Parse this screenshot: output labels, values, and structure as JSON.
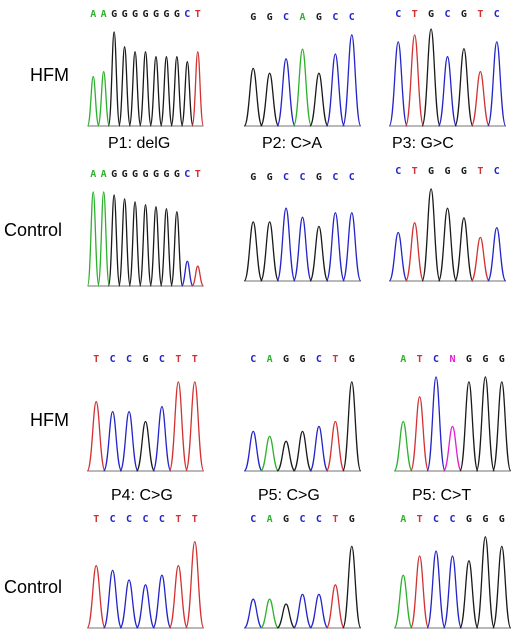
{
  "colors": {
    "A": "#2db12d",
    "C": "#2424c8",
    "G": "#1a1a1a",
    "T": "#d23232",
    "N": "#e020d0"
  },
  "row_labels": [
    "HFM",
    "Control",
    "HFM",
    "Control"
  ],
  "captions": [
    "P1: delG",
    "P2: C>A",
    "P3: G>C",
    "P4: C>G",
    "P5: C>G",
    "P5: C>T"
  ],
  "panels": [
    {
      "seq": "AAGGGGGGGCT",
      "peaks": [
        [
          0.5,
          "A"
        ],
        [
          0.55,
          "A"
        ],
        [
          0.95,
          "G"
        ],
        [
          0.8,
          "G"
        ],
        [
          0.75,
          "G"
        ],
        [
          0.75,
          "G"
        ],
        [
          0.7,
          "G"
        ],
        [
          0.7,
          "G"
        ],
        [
          0.7,
          "G"
        ],
        [
          0.65,
          "G"
        ],
        [
          0.75,
          "T"
        ]
      ]
    },
    {
      "seq": "GGCAGCC",
      "peaks": [
        [
          0.6,
          "G"
        ],
        [
          0.55,
          "G"
        ],
        [
          0.7,
          "C"
        ],
        [
          0.8,
          "A"
        ],
        [
          0.55,
          "G"
        ],
        [
          0.75,
          "C"
        ],
        [
          0.95,
          "C"
        ]
      ]
    },
    {
      "seq": "CTGCGTC",
      "peaks": [
        [
          0.85,
          "C"
        ],
        [
          0.92,
          "T"
        ],
        [
          0.98,
          "G"
        ],
        [
          0.7,
          "C"
        ],
        [
          0.78,
          "G"
        ],
        [
          0.55,
          "T"
        ],
        [
          0.85,
          "C"
        ]
      ]
    },
    {
      "seq": "AAGGGGGGGCT",
      "peaks": [
        [
          0.95,
          "A"
        ],
        [
          0.95,
          "A"
        ],
        [
          0.92,
          "G"
        ],
        [
          0.88,
          "G"
        ],
        [
          0.85,
          "G"
        ],
        [
          0.82,
          "G"
        ],
        [
          0.8,
          "G"
        ],
        [
          0.78,
          "G"
        ],
        [
          0.75,
          "G"
        ],
        [
          0.25,
          "C"
        ],
        [
          0.2,
          "T"
        ]
      ]
    },
    {
      "seq": "GGCCGCC",
      "peaks": [
        [
          0.65,
          "G"
        ],
        [
          0.65,
          "G"
        ],
        [
          0.8,
          "C"
        ],
        [
          0.7,
          "C"
        ],
        [
          0.6,
          "G"
        ],
        [
          0.75,
          "C"
        ],
        [
          0.75,
          "C"
        ]
      ]
    },
    {
      "seq": "CTGGGTC",
      "peaks": [
        [
          0.5,
          "C"
        ],
        [
          0.6,
          "T"
        ],
        [
          0.95,
          "G"
        ],
        [
          0.75,
          "G"
        ],
        [
          0.65,
          "G"
        ],
        [
          0.45,
          "T"
        ],
        [
          0.55,
          "C"
        ]
      ]
    },
    {
      "seq": "TCCGCTT",
      "peaks": [
        [
          0.7,
          "T"
        ],
        [
          0.6,
          "C"
        ],
        [
          0.6,
          "C"
        ],
        [
          0.5,
          "G"
        ],
        [
          0.65,
          "C"
        ],
        [
          0.9,
          "T"
        ],
        [
          0.9,
          "T"
        ]
      ]
    },
    {
      "seq": "CAGGCTG",
      "peaks": [
        [
          0.4,
          "C"
        ],
        [
          0.35,
          "A"
        ],
        [
          0.3,
          "G"
        ],
        [
          0.4,
          "G"
        ],
        [
          0.45,
          "C"
        ],
        [
          0.5,
          "T"
        ],
        [
          0.9,
          "G"
        ]
      ]
    },
    {
      "seq": "ATCNGGG",
      "peaks": [
        [
          0.5,
          "A"
        ],
        [
          0.75,
          "T"
        ],
        [
          0.95,
          "C"
        ],
        [
          0.45,
          "N"
        ],
        [
          0.9,
          "G"
        ],
        [
          0.95,
          "G"
        ],
        [
          0.9,
          "G"
        ]
      ]
    },
    {
      "seq": "TCCCCTT",
      "peaks": [
        [
          0.65,
          "T"
        ],
        [
          0.6,
          "C"
        ],
        [
          0.5,
          "C"
        ],
        [
          0.45,
          "C"
        ],
        [
          0.55,
          "C"
        ],
        [
          0.65,
          "T"
        ],
        [
          0.9,
          "T"
        ]
      ]
    },
    {
      "seq": "CAGCCTG",
      "peaks": [
        [
          0.3,
          "C"
        ],
        [
          0.3,
          "A"
        ],
        [
          0.25,
          "G"
        ],
        [
          0.35,
          "C"
        ],
        [
          0.35,
          "C"
        ],
        [
          0.45,
          "T"
        ],
        [
          0.85,
          "G"
        ]
      ]
    },
    {
      "seq": "ATCCGGG",
      "peaks": [
        [
          0.55,
          "A"
        ],
        [
          0.75,
          "T"
        ],
        [
          0.8,
          "C"
        ],
        [
          0.75,
          "C"
        ],
        [
          0.7,
          "G"
        ],
        [
          0.95,
          "G"
        ],
        [
          0.85,
          "G"
        ]
      ]
    }
  ]
}
